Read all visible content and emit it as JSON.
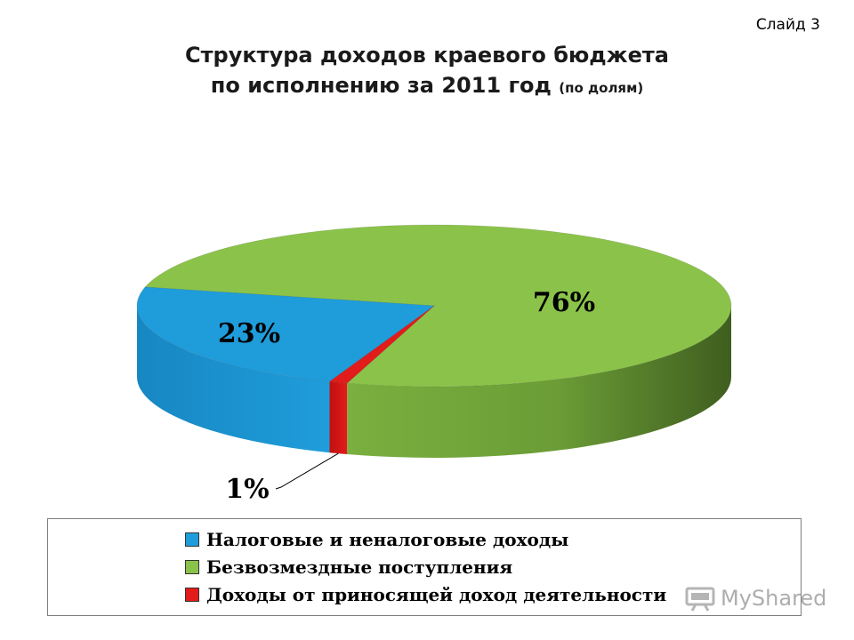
{
  "slide_label": "Слайд 3",
  "title_line1": "Структура доходов краевого бюджета",
  "title_line2": "по исполнению за 2011 год",
  "title_note": "(по долям)",
  "chart_data": {
    "type": "pie",
    "style": "3d",
    "slices": [
      {
        "name": "Налоговые и неналоговые доходы",
        "value": 23,
        "label": "23%",
        "color": "#1f9ddb"
      },
      {
        "name": "Безвозмездные поступления",
        "value": 76,
        "label": "76%",
        "color": "#8bc34a"
      },
      {
        "name": "Доходы от приносящей доход деятельности",
        "value": 1,
        "label": "1%",
        "color": "#e21b1b"
      }
    ],
    "legend_position": "bottom"
  },
  "watermark": {
    "text": "MyShared",
    "icon": "projector-icon"
  }
}
